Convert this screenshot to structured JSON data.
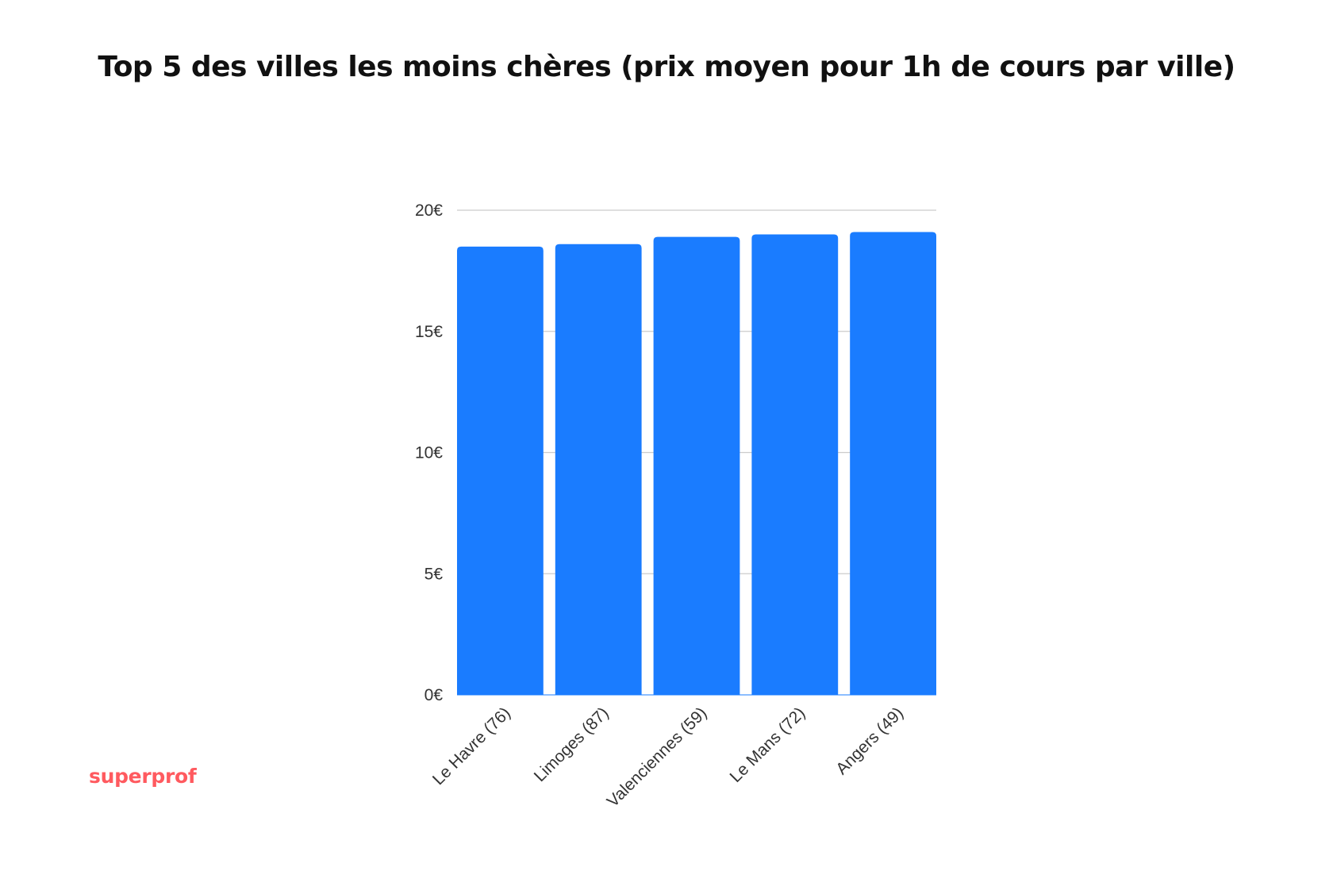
{
  "chart_data": {
    "type": "bar",
    "title": "Top 5 des villes les moins chères (prix moyen pour 1h de cours par ville)",
    "categories": [
      "Le Havre (76)",
      "Limoges (87)",
      "Valenciennes (59)",
      "Le Mans (72)",
      "Angers (49)"
    ],
    "values": [
      18.5,
      18.6,
      18.9,
      19.0,
      19.1
    ],
    "ylim": [
      0,
      20
    ],
    "yticks": [
      0,
      5,
      10,
      15,
      20
    ],
    "ytick_labels": [
      "0€",
      "5€",
      "10€",
      "15€",
      "20€"
    ],
    "xlabel": "",
    "ylabel": "",
    "grid": true,
    "bar_color": "#1a7cff",
    "grid_color": "#cccccc"
  },
  "brand": {
    "name": "superprof",
    "color": "#ff5a5f"
  }
}
